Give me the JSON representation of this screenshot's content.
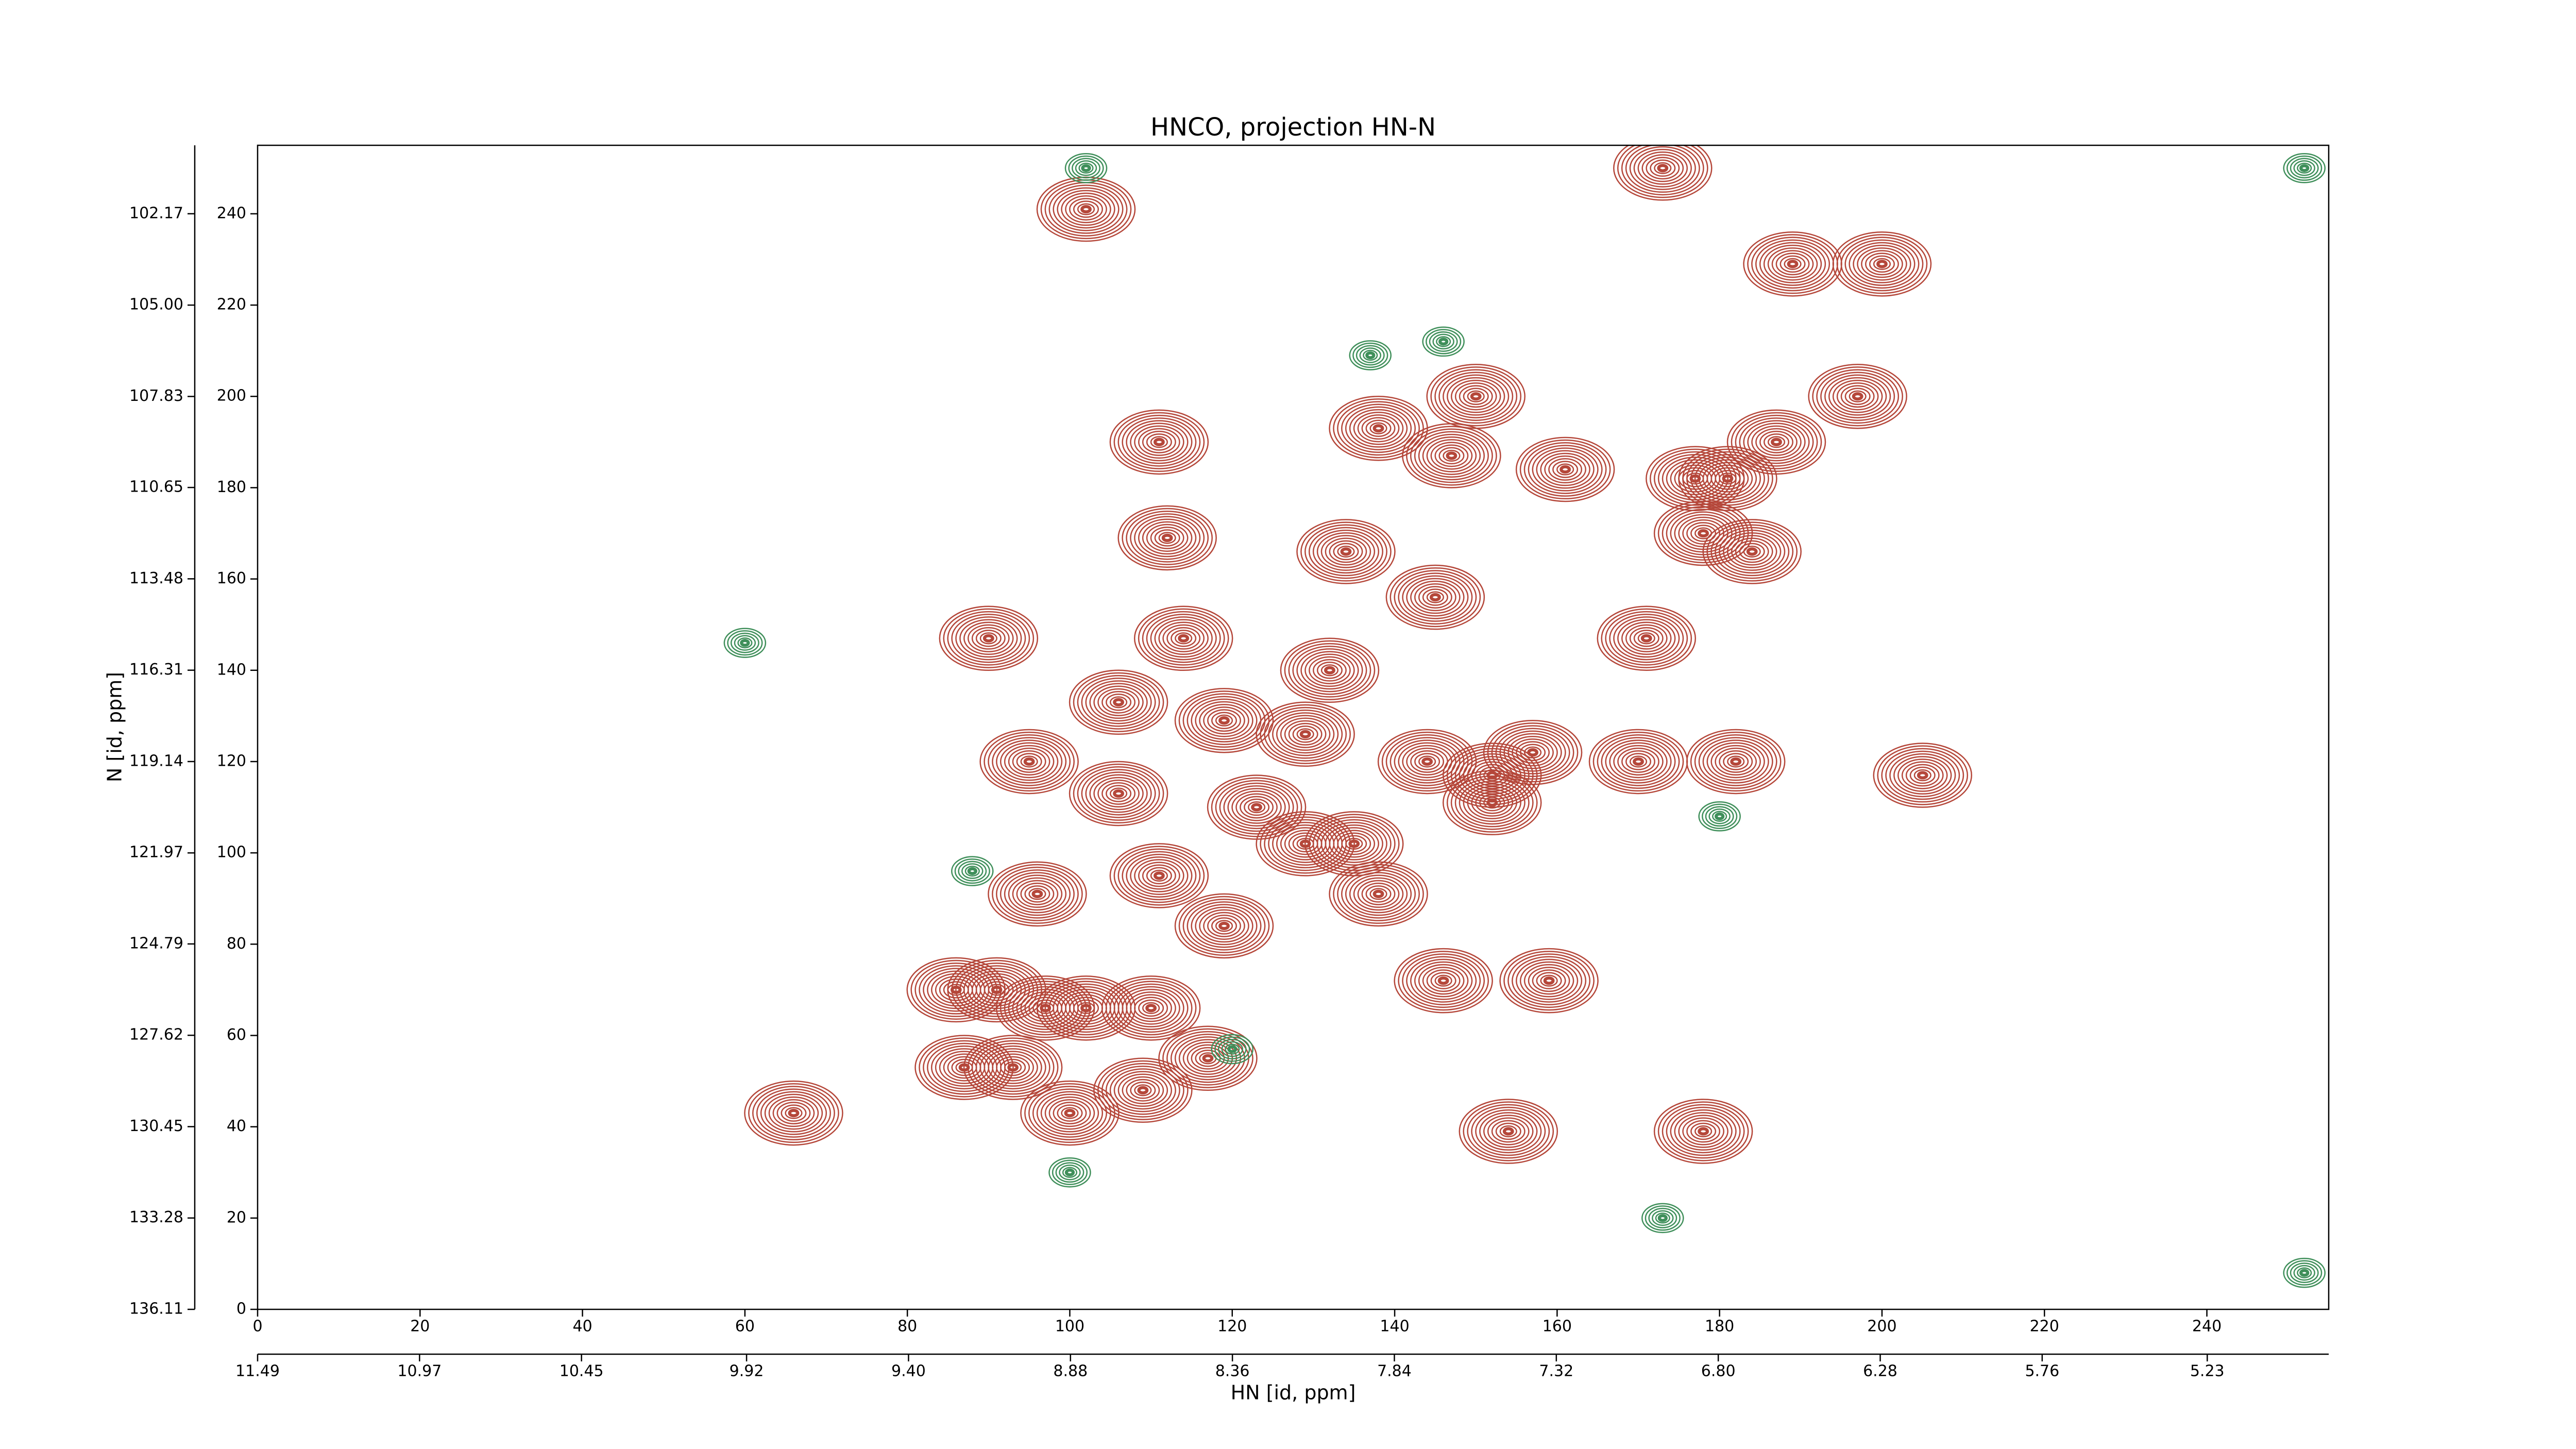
{
  "chart_data": {
    "type": "contour",
    "title": "HNCO, projection HN-N",
    "xlabel": "HN [id, ppm]",
    "ylabel": "N [id, ppm]",
    "xlim": [
      0,
      255
    ],
    "ylim": [
      0,
      255
    ],
    "xticks": [
      0,
      20,
      40,
      60,
      80,
      100,
      120,
      140,
      160,
      180,
      200,
      220,
      240
    ],
    "yticks": [
      0,
      20,
      40,
      60,
      80,
      100,
      120,
      140,
      160,
      180,
      200,
      220,
      240
    ],
    "hn_lim": [
      11.49,
      4.84
    ],
    "hn_ticks": [
      11.49,
      10.97,
      10.45,
      9.92,
      {
        "value": 9.4,
        "label": "9.40"
      },
      8.88,
      8.36,
      7.84,
      7.32,
      {
        "value": 6.8,
        "label": "6.80"
      },
      6.28,
      5.76,
      5.23
    ],
    "n_lim": [
      136.11,
      100.05
    ],
    "n_ticks": [
      136.11,
      133.28,
      130.45,
      127.62,
      124.79,
      121.97,
      119.14,
      116.31,
      113.48,
      110.65,
      107.83,
      {
        "value": 105,
        "label": "105.00"
      },
      102.17
    ],
    "peaks": {
      "positive": {
        "color": "#b5473a",
        "x": [
          102,
          173,
          189,
          200,
          197,
          187,
          111,
          138,
          150,
          147,
          161,
          177,
          181,
          112,
          134,
          145,
          178,
          184,
          90,
          114,
          132,
          171,
          106,
          119,
          129,
          95,
          144,
          152,
          157,
          170,
          182,
          205,
          106,
          123,
          152,
          96,
          129,
          135,
          111,
          138,
          119,
          86,
          91,
          97,
          102,
          110,
          146,
          159,
          87,
          93,
          117,
          66,
          100,
          109,
          154,
          178
        ],
        "y": [
          241,
          250,
          229,
          229,
          200,
          190,
          190,
          193,
          200,
          187,
          184,
          182,
          182,
          169,
          166,
          156,
          170,
          166,
          147,
          147,
          140,
          147,
          133,
          129,
          126,
          120,
          120,
          117,
          122,
          120,
          120,
          117,
          113,
          110,
          111,
          91,
          102,
          102,
          95,
          91,
          84,
          70,
          70,
          66,
          66,
          66,
          72,
          72,
          53,
          53,
          55,
          43,
          43,
          48,
          39,
          39
        ]
      },
      "negative": {
        "color": "#3f8f5a",
        "x": [
          102,
          137,
          146,
          100,
          173,
          60,
          88,
          120,
          180,
          252,
          252
        ],
        "y": [
          250,
          209,
          212,
          30,
          20,
          146,
          96,
          57,
          108,
          250,
          8
        ]
      }
    }
  }
}
